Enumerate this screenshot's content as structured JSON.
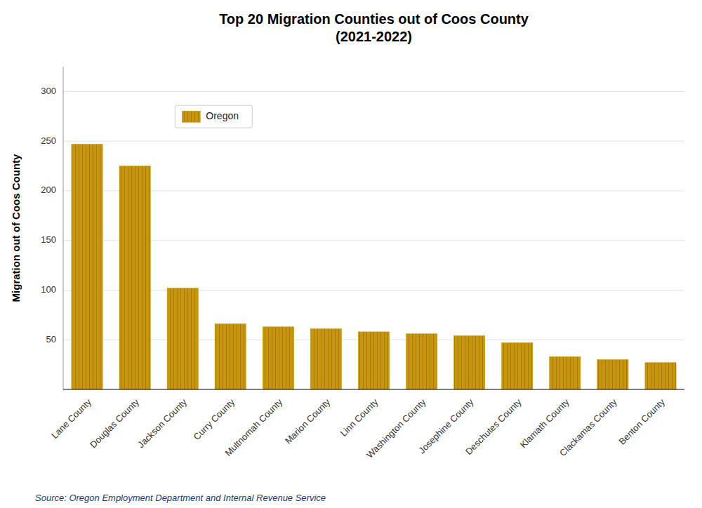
{
  "chart_data": {
    "type": "bar",
    "title": "Top 20 Migration Counties out of Coos County\n(2021-2022)",
    "y_label": "Migration out of Coos County",
    "source": "Source: Oregon Employment Department and Internal Revenue Service",
    "categories": [
      "Lane County",
      "Douglas County",
      "Jackson County",
      "Curry County",
      "Multnomah County",
      "Marion County",
      "Linn County",
      "Washington County",
      "Josephine County",
      "Deschutes County",
      "Klamath County",
      "Clackamas County",
      "Benton County"
    ],
    "series": [
      {
        "name": "Oregon",
        "color": "#C8960C",
        "values": [
          247,
          225,
          102,
          66,
          63,
          61,
          58,
          56,
          54,
          47,
          33,
          30,
          27
        ]
      }
    ],
    "ylim": [
      0,
      325
    ],
    "yticks": [
      50,
      100,
      150,
      200,
      250,
      300
    ],
    "grid": true,
    "legend": "upper left"
  }
}
